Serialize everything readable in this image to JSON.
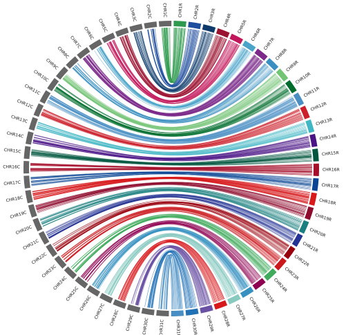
{
  "diagram": {
    "type": "circos",
    "c_segments": [
      "CHR1C",
      "CHR2C",
      "CHR3C",
      "CHR4C",
      "CHR5C",
      "CHR6C",
      "CHR7C",
      "CHR8C",
      "CHR9C",
      "CHR10C",
      "CHR11C",
      "CHR12C",
      "CHR13C",
      "CHR14C",
      "CHR15C",
      "CHR16C",
      "CHR17C",
      "CHR18C",
      "CHR19C",
      "CHR20C",
      "CHR21C",
      "CHR22C",
      "CHR23C",
      "CHR24C",
      "CHR25C",
      "CHR26C",
      "CHR27C",
      "CHR28C",
      "CHR29C",
      "CHR30C",
      "CHR31C"
    ],
    "r_segments": [
      "CHR1R",
      "CHR2R",
      "CHR3R",
      "CHR4R",
      "CHR5R",
      "CHR6R",
      "CHR7R",
      "CHR8R",
      "CHR9R",
      "CHR10R",
      "CHR11R",
      "CHR12R",
      "CHR13R",
      "CHR14R",
      "CHR15R",
      "CHR16R",
      "CHR17R",
      "CHR18R",
      "CHR19R",
      "CHR20R",
      "CHR21R",
      "CHR22R",
      "CHR23R",
      "CHR24R",
      "CHR25R",
      "CHR26R",
      "CHR27R",
      "CHR28R",
      "CHR29R",
      "CHR30R",
      "CHR31R"
    ],
    "c_color": "#666666",
    "r_colors": [
      "#2e9a4e",
      "#1f4e9e",
      "#0d3a6b",
      "#9b1230",
      "#c2185b",
      "#4aa3c9",
      "#7b2a8a",
      "#3a8fc0",
      "#74c476",
      "#006d2c",
      "#4a8fc4",
      "#cc1f2a",
      "#41b6c4",
      "#4a1486",
      "#00563f",
      "#a50f2a",
      "#084594",
      "#d7191c",
      "#8e0a2c",
      "#1b7f7f",
      "#253494",
      "#99000d",
      "#cb181d",
      "#41ab5d",
      "#8e0152",
      "#3690c0",
      "#88c9c0",
      "#d7191c",
      "#6a51a3",
      "#2171b5",
      "#4a8fc4"
    ]
  }
}
